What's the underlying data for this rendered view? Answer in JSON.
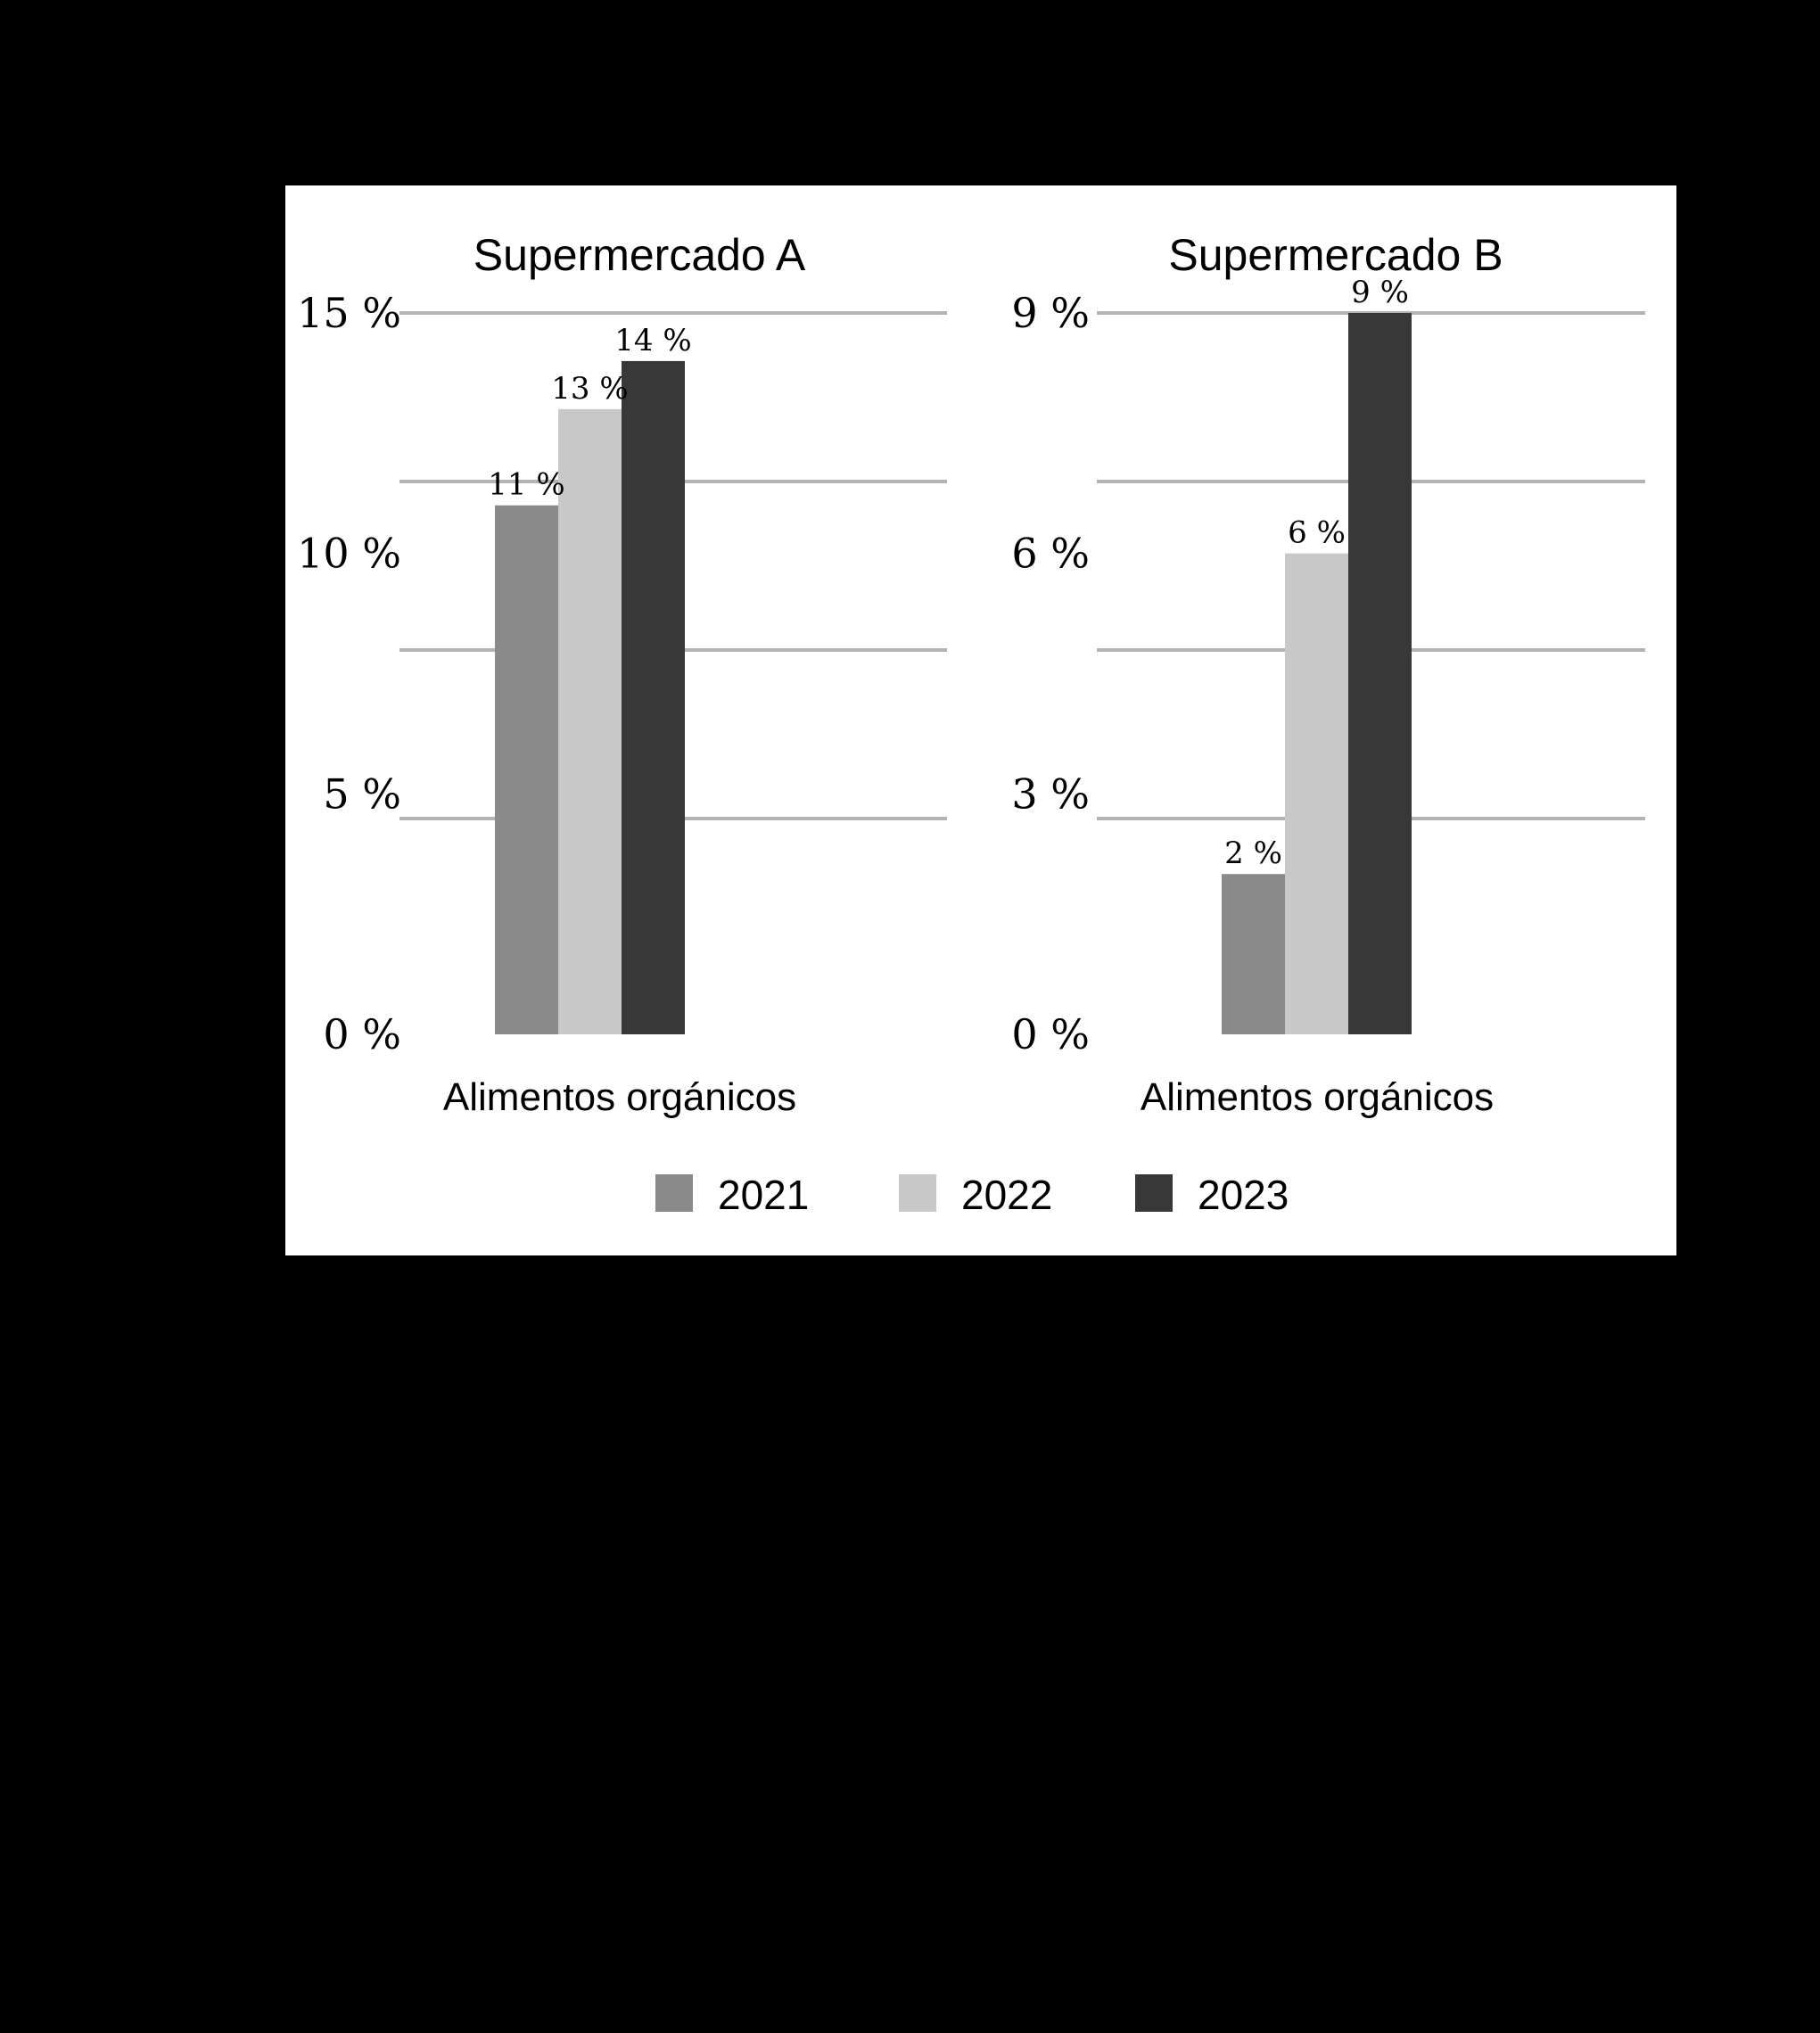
{
  "chart_data": [
    {
      "type": "bar",
      "title": "Supermercado A",
      "categories": [
        "Alimentos orgánicos"
      ],
      "series": [
        {
          "name": "2021",
          "values": [
            11
          ],
          "labels": [
            "11 %"
          ]
        },
        {
          "name": "2022",
          "values": [
            13
          ],
          "labels": [
            "13 %"
          ]
        },
        {
          "name": "2023",
          "values": [
            14
          ],
          "labels": [
            "14 %"
          ]
        }
      ],
      "ylim": [
        0,
        15
      ],
      "yticks": [
        0,
        5,
        10,
        15
      ],
      "yticklabels": [
        "0 %",
        "5 %",
        "10 %",
        "15 %"
      ],
      "grid": true
    },
    {
      "type": "bar",
      "title": "Supermercado B",
      "categories": [
        "Alimentos orgánicos"
      ],
      "series": [
        {
          "name": "2021",
          "values": [
            2
          ],
          "labels": [
            "2 %"
          ]
        },
        {
          "name": "2022",
          "values": [
            6
          ],
          "labels": [
            "6 %"
          ]
        },
        {
          "name": "2023",
          "values": [
            9
          ],
          "labels": [
            "9 %"
          ]
        }
      ],
      "ylim": [
        0,
        9
      ],
      "yticks": [
        0,
        3,
        6,
        9
      ],
      "yticklabels": [
        "0 %",
        "3 %",
        "6 %",
        "9 %"
      ],
      "grid": true
    }
  ],
  "legend": {
    "placement": "bottom",
    "items": [
      {
        "label": "2021",
        "color": "#8a8a8a"
      },
      {
        "label": "2022",
        "color": "#c8c8c8"
      },
      {
        "label": "2023",
        "color": "#383838"
      }
    ]
  },
  "colors": {
    "background": "#000000",
    "panel": "#ffffff",
    "grid": "#b3b3b3"
  }
}
